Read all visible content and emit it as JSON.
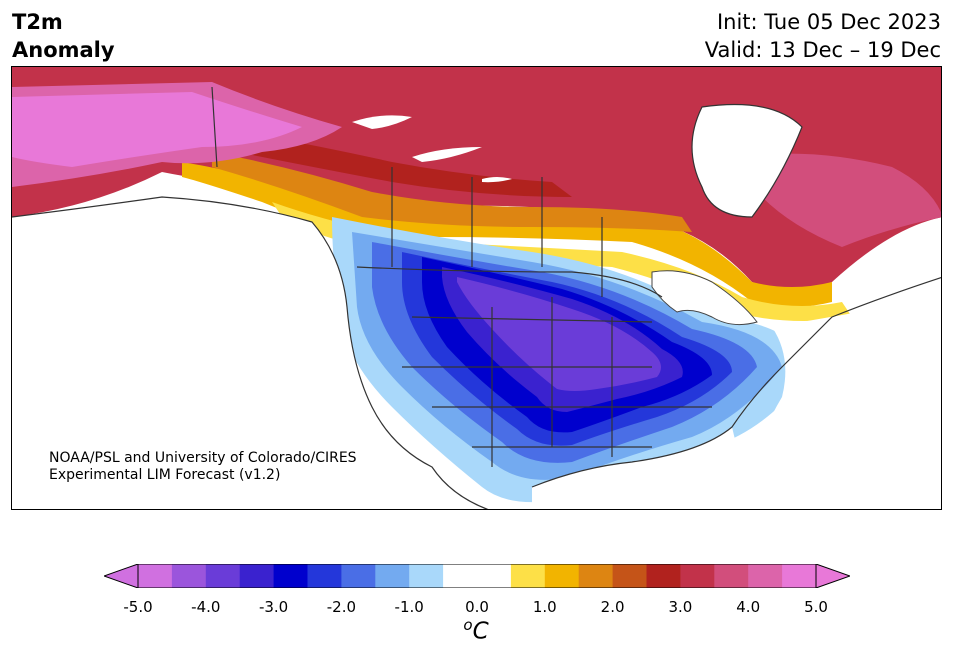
{
  "header": {
    "title_line1": "T2m",
    "title_line2": "Anomaly",
    "init": "Init: Tue 05 Dec 2023",
    "valid": "Valid: 13 Dec – 19 Dec"
  },
  "credit": {
    "line1": "NOAA/PSL and University of Colorado/CIRES",
    "line2": "Experimental LIM Forecast (v1.2)"
  },
  "colorbar": {
    "colors": [
      "#d070e0",
      "#9b55dc",
      "#6a3cd8",
      "#3a22cf",
      "#0000cd",
      "#2437da",
      "#4a6ee6",
      "#73aaf0",
      "#a9d8fa",
      "#ffffff",
      "#ffffff",
      "#fde047",
      "#f2b400",
      "#dd8512",
      "#c55418",
      "#b1221e",
      "#c2324a",
      "#d24e7c",
      "#dc64aa",
      "#e878d8"
    ],
    "ticks": [
      "-5.0",
      "-4.0",
      "-3.0",
      "-2.0",
      "-1.0",
      "0.0",
      "1.0",
      "2.0",
      "3.0",
      "4.0",
      "5.0"
    ],
    "units_label": "oC"
  }
}
